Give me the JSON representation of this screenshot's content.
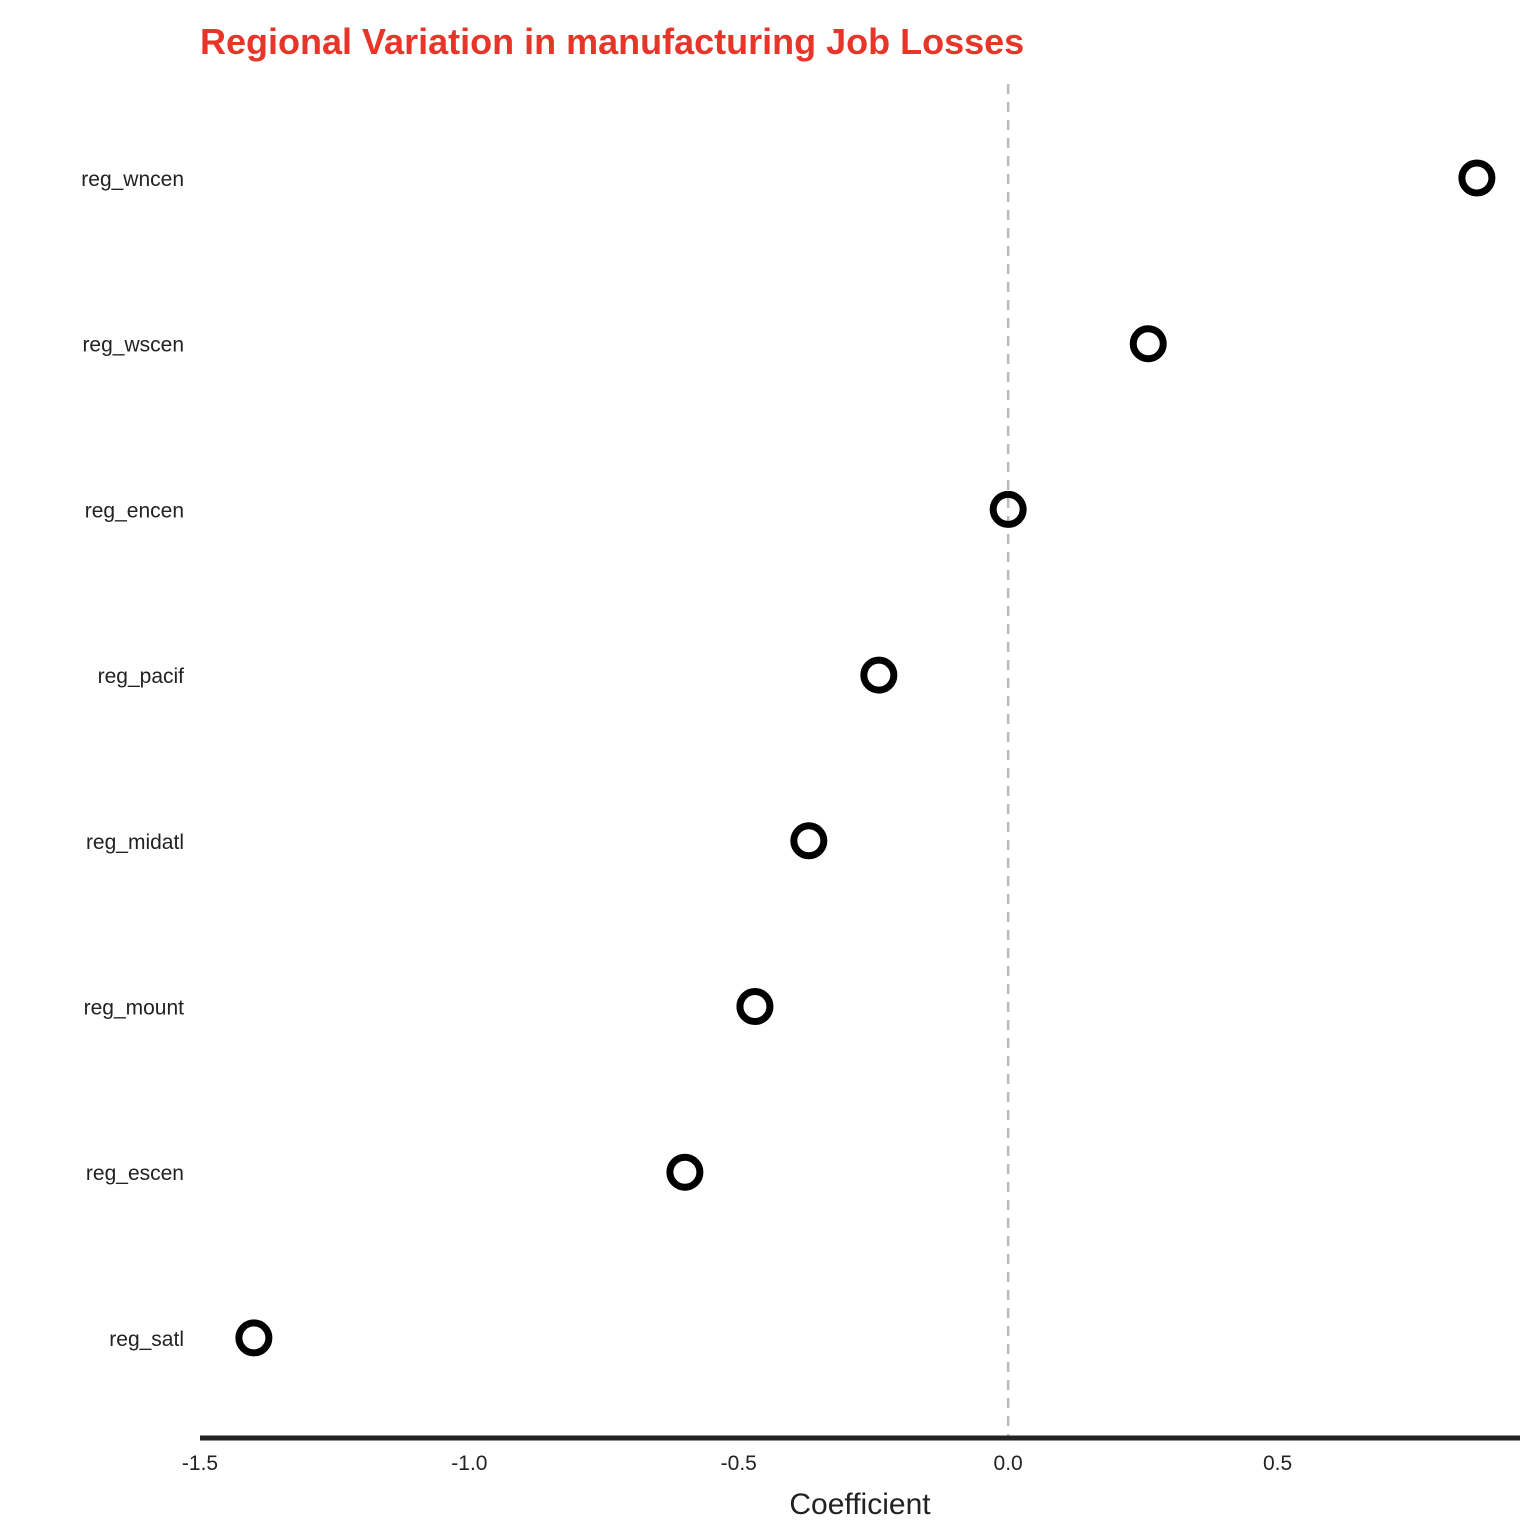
{
  "chart_data": {
    "type": "scatter",
    "title": "Regional Variation in manufacturing Job Losses",
    "xlabel": "Coefficient",
    "ylabel": "",
    "xlim": [
      -1.5,
      0.95
    ],
    "x_ticks": [
      "-1.5",
      "-1.0",
      "-0.5",
      "0.0",
      "0.5"
    ],
    "x_tick_values": [
      -1.5,
      -1.0,
      -0.5,
      0.0,
      0.5
    ],
    "reference_line": 0.0,
    "grid": false,
    "categories": [
      "reg_wncen",
      "reg_wscen",
      "reg_encen",
      "reg_pacif",
      "reg_midatl",
      "reg_mount",
      "reg_escen",
      "reg_satl"
    ],
    "values": [
      0.87,
      0.26,
      0.0,
      -0.24,
      -0.37,
      -0.47,
      -0.6,
      -1.4
    ],
    "marker": "open-circle"
  },
  "colors": {
    "title": "#e8352a",
    "marker": "#000000",
    "axis": "#222222",
    "reference_line": "#bbbbbb"
  }
}
